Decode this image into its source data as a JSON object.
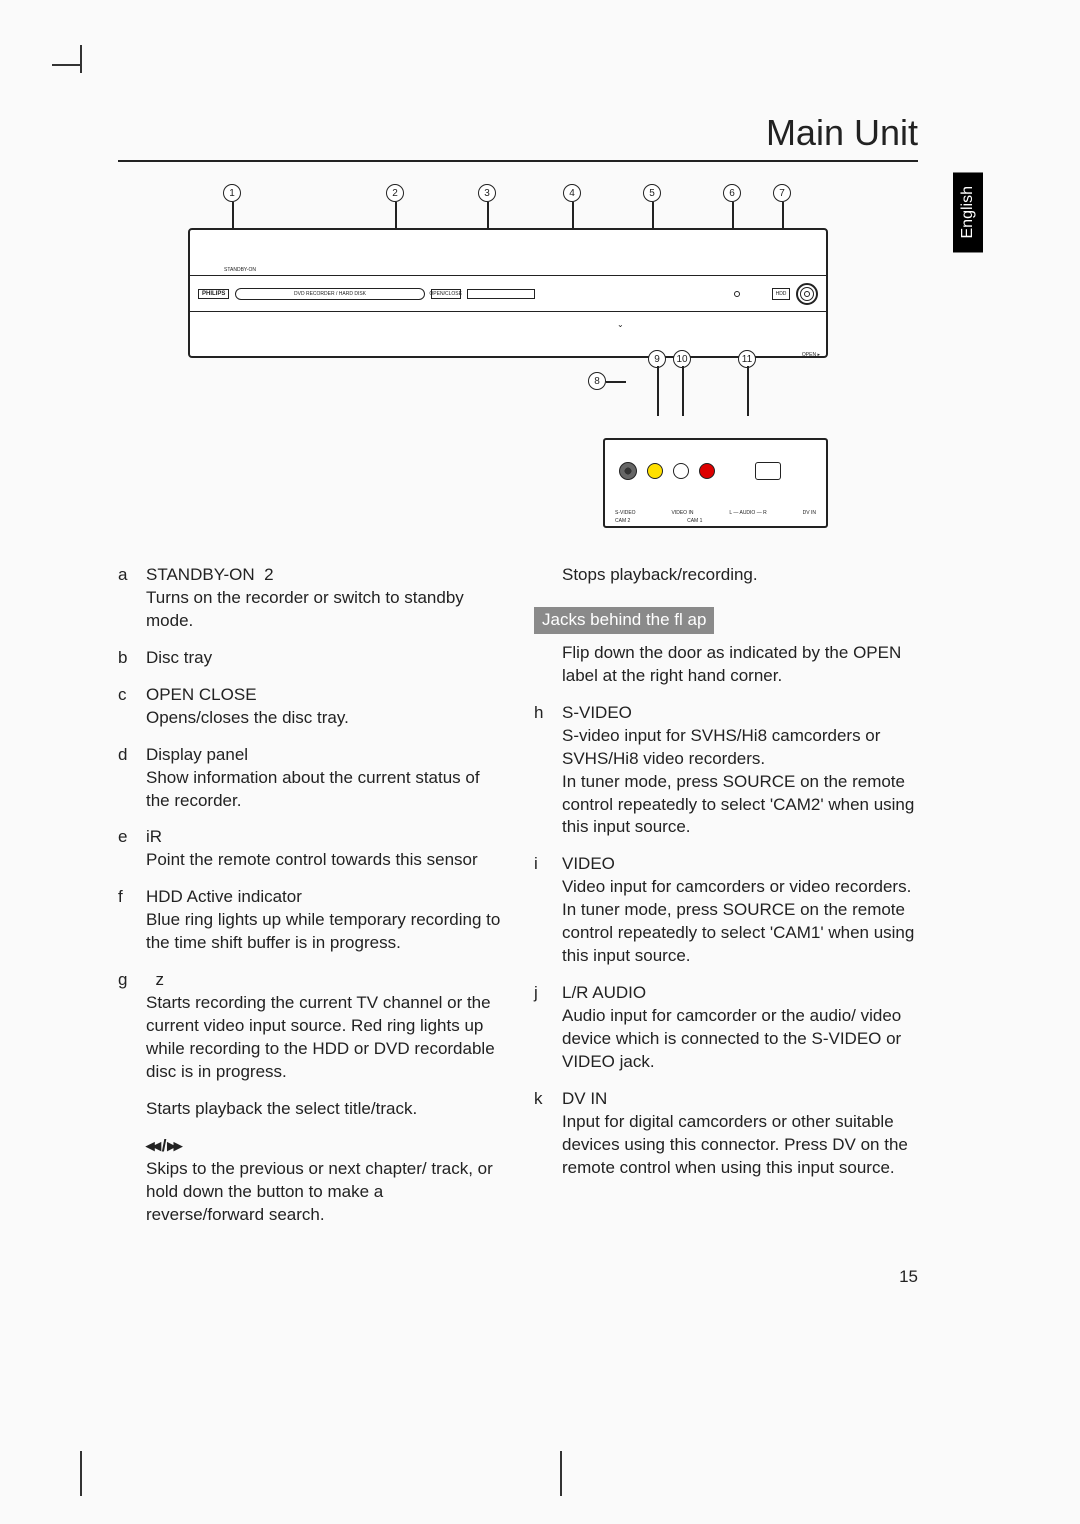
{
  "page": {
    "title": "Main Unit",
    "language_tab": "English",
    "page_number": "15"
  },
  "device": {
    "brand": "PHILIPS",
    "tray_text": "DVD RECORDER / HARD DISK",
    "open_close": "OPEN/CLOSE",
    "hdd": "HDD",
    "standby_label": "STANDBY-ON",
    "open_arrow": "OPEN ▸",
    "flap_mark": "⌄"
  },
  "callouts": {
    "top": [
      "1",
      "2",
      "3",
      "4",
      "5",
      "6",
      "7"
    ],
    "bottom": [
      "8",
      "9",
      "10",
      "11"
    ]
  },
  "panel_labels": {
    "svideo": "S-VIDEO",
    "cam2": "CAM 2",
    "video_in": "VIDEO IN",
    "cam1": "CAM 1",
    "audio_l": "L — AUDIO — R",
    "dv_in": "DV IN"
  },
  "entries_left": [
    {
      "letter": "a",
      "title": "STANDBY-ON",
      "symbol": "2",
      "body": "Turns on the recorder or switch to standby mode."
    },
    {
      "letter": "b",
      "title": "Disc tray",
      "body": ""
    },
    {
      "letter": "c",
      "title": "OPEN CLOSE",
      "body": "Opens/closes the disc tray."
    },
    {
      "letter": "d",
      "title": "Display panel",
      "body": "Show information about the current status of the recorder."
    },
    {
      "letter": "e",
      "title": "iR",
      "body": "Point the remote control towards this sensor"
    },
    {
      "letter": "f",
      "title": "HDD Active indicator",
      "body": "Blue ring lights up while  temporary recording to the time shift buffer is in progress."
    },
    {
      "letter": "g",
      "title": "",
      "symbol": "z",
      "body": "Starts recording the current TV channel or the current video input source. Red ring lights up while recording to the HDD or DVD recordable disc is in progress."
    }
  ],
  "extra_left": [
    {
      "body": "Starts playback the select title/track."
    },
    {
      "icons": "◂◂ / ▸▸",
      "body": "Skips to the previous or next chapter/ track, or hold down the button to make a reverse/forward search."
    }
  ],
  "extra_right_top": {
    "body": "Stops playback/recording."
  },
  "flap_section": {
    "heading": "Jacks behind the fl ap",
    "body1": "Flip down the door as indicated by the",
    "open": "OPEN ",
    "body2": "label at the right hand corner."
  },
  "entries_right": [
    {
      "letter": "h",
      "title": "S-VIDEO",
      "body": "S-video input for SVHS/Hi8 camcorders or SVHS/Hi8 video recorders.\nIn tuner mode, press SOURCE on the remote control repeatedly to select 'CAM2' when using this input source."
    },
    {
      "letter": "i",
      "title": "VIDEO",
      "body": "Video input for camcorders or video recorders.\nIn tuner mode, press SOURCE on the remote control repeatedly to select 'CAM1' when using this input source."
    },
    {
      "letter": "j",
      "title": "L/R AUDIO",
      "body": "Audio input for camcorder or the audio/ video device which is  connected to the S-VIDEO or VIDEO jack."
    },
    {
      "letter": "k",
      "title": "DV IN",
      "body": "Input for digital camcorders or other suitable devices using this connector. Press DV on the remote control when using this input source."
    }
  ]
}
